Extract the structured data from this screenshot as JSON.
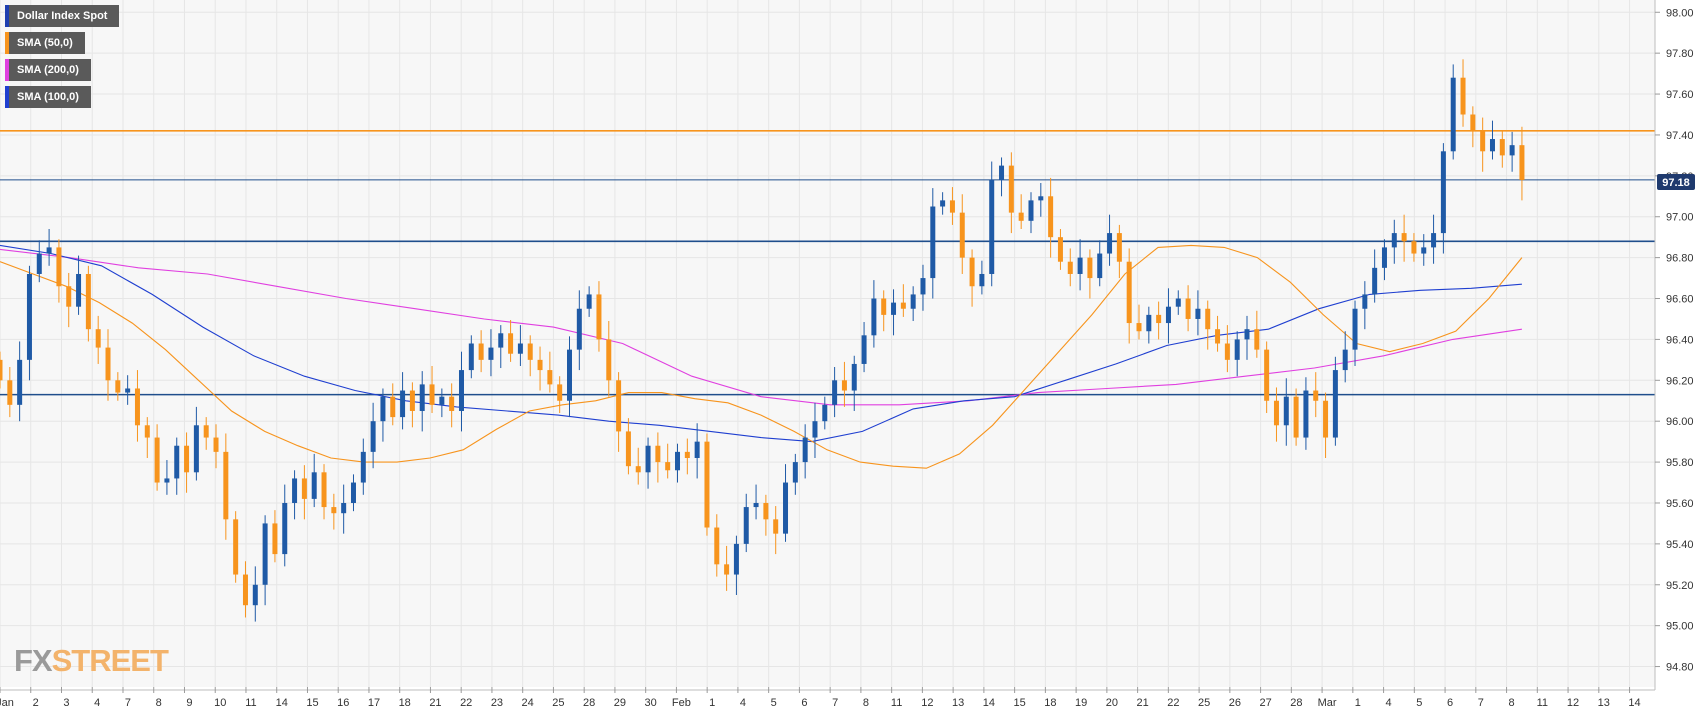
{
  "colors": {
    "bull": "#1f5aa6",
    "bear": "#f7941d",
    "sma50": "#f7941d",
    "sma100": "#1f3fd0",
    "sma200": "#e040e0",
    "resistance": "#f7941d",
    "support": "#1f4e8c",
    "grid": "#e6e6e6",
    "background": "#f7f7f7"
  },
  "legend": [
    {
      "label": "Dollar Index Spot",
      "color": "#1f3fb0"
    },
    {
      "label": "SMA (50,0)",
      "color": "#f7941d"
    },
    {
      "label": "SMA (200,0)",
      "color": "#e040e0"
    },
    {
      "label": "SMA (100,0)",
      "color": "#1f3fd0"
    }
  ],
  "logo": {
    "part1": "FX",
    "part2": "STREET"
  },
  "chart_data": {
    "type": "candlestick",
    "title": "Dollar Index Spot",
    "timeframe": "4h",
    "ylim": [
      94.7,
      98.06
    ],
    "y_ticks": [
      "98.00",
      "97.80",
      "97.60",
      "97.40",
      "97.20",
      "97.00",
      "96.80",
      "96.60",
      "96.40",
      "96.20",
      "96.00",
      "95.80",
      "95.60",
      "95.40",
      "95.20",
      "95.00",
      "94.80"
    ],
    "x_labels": [
      "Jan",
      "2",
      "3",
      "4",
      "7",
      "8",
      "9",
      "10",
      "11",
      "14",
      "15",
      "16",
      "17",
      "18",
      "21",
      "22",
      "23",
      "24",
      "25",
      "28",
      "29",
      "30",
      "Feb",
      "1",
      "4",
      "5",
      "6",
      "7",
      "8",
      "11",
      "12",
      "13",
      "14",
      "15",
      "18",
      "19",
      "20",
      "21",
      "22",
      "25",
      "26",
      "27",
      "28",
      "Mar",
      "1",
      "4",
      "5",
      "6",
      "7",
      "8",
      "11",
      "12",
      "13",
      "14"
    ],
    "x_range_days": [
      0,
      53.6
    ],
    "last_price": "97.18",
    "horizontal_levels": [
      {
        "value": 97.42,
        "type": "resistance"
      },
      {
        "value": 97.18,
        "type": "last-price"
      },
      {
        "value": 96.88,
        "type": "support"
      },
      {
        "value": 96.13,
        "type": "support"
      }
    ],
    "closes": [
      96.2,
      96.08,
      96.3,
      96.72,
      96.82,
      96.85,
      96.66,
      96.56,
      96.72,
      96.45,
      96.36,
      96.2,
      96.14,
      96.16,
      95.98,
      95.92,
      95.7,
      95.72,
      95.88,
      95.75,
      95.98,
      95.92,
      95.85,
      95.52,
      95.25,
      95.1,
      95.2,
      95.5,
      95.35,
      95.6,
      95.72,
      95.62,
      95.75,
      95.58,
      95.55,
      95.6,
      95.7,
      95.85,
      96.0,
      96.12,
      96.02,
      96.15,
      96.05,
      96.18,
      96.08,
      96.12,
      96.05,
      96.25,
      96.38,
      96.3,
      96.36,
      96.43,
      96.33,
      96.38,
      96.3,
      96.25,
      96.18,
      96.1,
      96.35,
      96.55,
      96.62,
      96.4,
      96.2,
      95.95,
      95.78,
      95.75,
      95.88,
      95.8,
      95.76,
      95.85,
      95.82,
      95.9,
      95.48,
      95.3,
      95.25,
      95.4,
      95.58,
      95.6,
      95.52,
      95.45,
      95.7,
      95.8,
      95.92,
      96.0,
      96.08,
      96.2,
      96.15,
      96.28,
      96.42,
      96.6,
      96.52,
      96.58,
      96.55,
      96.62,
      96.7,
      97.05,
      97.08,
      97.02,
      96.8,
      96.66,
      96.72,
      97.18,
      97.25,
      97.02,
      96.98,
      97.08,
      97.1,
      96.9,
      96.78,
      96.72,
      96.8,
      96.7,
      96.82,
      96.92,
      96.78,
      96.48,
      96.44,
      96.52,
      96.48,
      96.56,
      96.6,
      96.5,
      96.55,
      96.45,
      96.38,
      96.3,
      96.4,
      96.45,
      96.35,
      96.1,
      95.98,
      96.12,
      95.92,
      96.15,
      96.1,
      95.92,
      96.25,
      96.35,
      96.55,
      96.62,
      96.75,
      96.85,
      96.92,
      96.88,
      96.82,
      96.85,
      96.92,
      97.32,
      97.68,
      97.5,
      97.42,
      97.32,
      97.38,
      97.3,
      97.35,
      97.18
    ],
    "sma50": [
      96.78,
      96.72,
      96.66,
      96.58,
      96.48,
      96.35,
      96.2,
      96.05,
      95.95,
      95.88,
      95.82,
      95.8,
      95.8,
      95.82,
      95.86,
      95.96,
      96.05,
      96.08,
      96.1,
      96.14,
      96.14,
      96.11,
      96.09,
      96.03,
      95.95,
      95.86,
      95.8,
      95.78,
      95.77,
      95.84,
      95.98,
      96.16,
      96.34,
      96.52,
      96.72,
      96.85,
      96.86,
      96.85,
      96.8,
      96.68,
      96.52,
      96.38,
      96.34,
      96.38,
      96.44,
      96.6,
      96.8
    ],
    "sma100": [
      96.86,
      96.82,
      96.76,
      96.62,
      96.46,
      96.32,
      96.22,
      96.15,
      96.1,
      96.07,
      96.05,
      96.03,
      96.0,
      95.98,
      95.95,
      95.92,
      95.9,
      95.95,
      96.06,
      96.1,
      96.12,
      96.2,
      96.28,
      96.37,
      96.42,
      96.45,
      96.55,
      96.62,
      96.64,
      96.65,
      96.67
    ],
    "sma200": [
      96.84,
      96.8,
      96.75,
      96.72,
      96.66,
      96.6,
      96.55,
      96.5,
      96.46,
      96.38,
      96.22,
      96.12,
      96.08,
      96.08,
      96.1,
      96.14,
      96.16,
      96.18,
      96.22,
      96.26,
      96.32,
      96.4,
      96.45
    ]
  }
}
